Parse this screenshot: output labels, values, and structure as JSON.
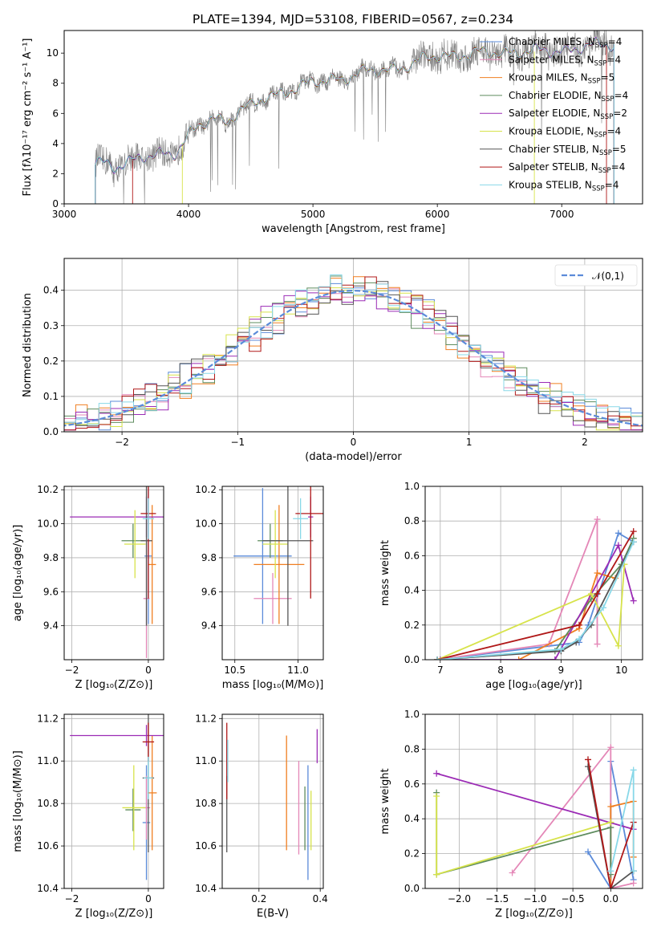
{
  "figure": {
    "title": "PLATE=1394, MJD=53108, FIBERID=0567, z=0.234"
  },
  "colors": {
    "Chabrier MILES": "#5b8bd9",
    "Salpeter MILES": "#e487b7",
    "Kroupa MILES": "#f07f21",
    "Chabrier ELODIE": "#5e8c5e",
    "Salpeter ELODIE": "#9b2bb5",
    "Kroupa ELODIE": "#d7e34b",
    "Chabrier STELIB": "#555555",
    "Salpeter STELIB": "#b01818",
    "Kroupa STELIB": "#88d8e8",
    "data": "#808080",
    "gaussian": "#5b8bd9"
  },
  "chart_data": [
    {
      "type": "line",
      "xlabel": "wavelength [Angstrom, rest frame]",
      "ylabel": "Flux [f_λ 10^-17 erg cm^-2 s^-1 A^-1]",
      "xlim": [
        3000,
        7650
      ],
      "ylim": [
        0,
        11.5
      ],
      "x_ticks": [
        3000,
        4000,
        5000,
        6000,
        7000
      ],
      "y_ticks": [
        0,
        2,
        4,
        6,
        8,
        10
      ],
      "grid": false,
      "legend_position": "right",
      "legend": [
        {
          "model": "Chabrier MILES",
          "nssp": "4"
        },
        {
          "model": "Salpeter MILES",
          "nssp": "4"
        },
        {
          "model": "Kroupa MILES",
          "nssp": "5"
        },
        {
          "model": "Chabrier ELODIE",
          "nssp": "4"
        },
        {
          "model": "Salpeter ELODIE",
          "nssp": "2"
        },
        {
          "model": "Kroupa ELODIE",
          "nssp": "4"
        },
        {
          "model": "Chabrier STELIB",
          "nssp": "5"
        },
        {
          "model": "Salpeter STELIB",
          "nssp": "4"
        },
        {
          "model": "Kroupa STELIB",
          "nssp": "4"
        }
      ],
      "model_continuum": {
        "x": [
          3250,
          3300,
          3400,
          3500,
          3600,
          3700,
          3800,
          3900,
          4000,
          4100,
          4200,
          4300,
          4400,
          4500,
          4600,
          4700,
          4800,
          4900,
          5000,
          5200,
          5400,
          5600,
          5800,
          6000,
          6200,
          6400,
          6600,
          6800,
          7000,
          7200,
          7400
        ],
        "y": [
          2.6,
          2.7,
          2.5,
          2.8,
          3.0,
          3.1,
          3.3,
          3.5,
          4.6,
          5.2,
          5.6,
          5.5,
          6.2,
          6.5,
          6.9,
          7.2,
          7.6,
          7.8,
          8.0,
          8.3,
          8.7,
          8.9,
          9.3,
          9.8,
          9.9,
          10.0,
          10.1,
          10.1,
          10.2,
          10.4,
          10.6
        ]
      }
    },
    {
      "type": "histogram",
      "xlabel": "(data-model)/error",
      "ylabel": "Normed distribution",
      "xlim": [
        -2.5,
        2.5
      ],
      "ylim": [
        0,
        0.49
      ],
      "x_ticks": [
        -2,
        -1,
        0,
        1,
        2
      ],
      "y_ticks": [
        0.0,
        0.1,
        0.2,
        0.3,
        0.4
      ],
      "grid": true,
      "legend_position": "top-right",
      "legend": [
        "𝒩(0,1)"
      ],
      "gaussian": {
        "mean": 0,
        "sigma": 1
      }
    },
    {
      "type": "scatter",
      "panel": "age-vs-Z",
      "xlabel": "Z [log10(Z/Z⊙)]",
      "ylabel": "age [log10(age/yr)]",
      "xlim": [
        -2.2,
        0.4
      ],
      "ylim": [
        9.2,
        10.22
      ],
      "x_ticks": [
        -2,
        0
      ],
      "y_ticks": [
        9.4,
        9.6,
        9.8,
        10.0,
        10.2
      ],
      "grid": true,
      "points": [
        {
          "series": "Chabrier MILES",
          "x": 0.0,
          "y": 9.81,
          "xerr": 0.1,
          "yerr": 0.4
        },
        {
          "series": "Salpeter MILES",
          "x": -0.05,
          "y": 9.56,
          "xerr": 0.08,
          "yerr": 0.35
        },
        {
          "series": "Kroupa MILES",
          "x": 0.1,
          "y": 9.76,
          "xerr": 0.1,
          "yerr": 0.35
        },
        {
          "series": "Chabrier ELODIE",
          "x": -0.4,
          "y": 9.9,
          "xerr": 0.3,
          "yerr": 0.1
        },
        {
          "series": "Salpeter ELODIE",
          "x": -0.05,
          "y": 10.04,
          "xerr": 2.0,
          "yerr": 0.12
        },
        {
          "series": "Kroupa ELODIE",
          "x": -0.35,
          "y": 9.88,
          "xerr": 0.28,
          "yerr": 0.2
        },
        {
          "series": "Chabrier STELIB",
          "x": -0.05,
          "y": 9.9,
          "xerr": 0.15,
          "yerr": 0.5
        },
        {
          "series": "Salpeter STELIB",
          "x": 0.0,
          "y": 10.06,
          "xerr": 0.2,
          "yerr": 0.5
        },
        {
          "series": "Kroupa STELIB",
          "x": 0.0,
          "y": 10.03,
          "xerr": 0.15,
          "yerr": 0.12
        }
      ]
    },
    {
      "type": "scatter",
      "panel": "age-vs-mass",
      "xlabel": "mass [log10(M/M⊙)]",
      "xlim": [
        10.4,
        11.2
      ],
      "ylim": [
        9.2,
        10.22
      ],
      "x_ticks": [
        10.5,
        11.0
      ],
      "y_ticks": [
        9.4,
        9.6,
        9.8,
        10.0,
        10.2
      ],
      "grid": true,
      "points": [
        {
          "series": "Chabrier MILES",
          "x": 10.72,
          "y": 9.81,
          "xerr": 0.23,
          "yerr": 0.4
        },
        {
          "series": "Salpeter MILES",
          "x": 10.8,
          "y": 9.56,
          "xerr": 0.15,
          "yerr": 0.15
        },
        {
          "series": "Kroupa MILES",
          "x": 10.85,
          "y": 9.76,
          "xerr": 0.2,
          "yerr": 0.35
        },
        {
          "series": "Chabrier ELODIE",
          "x": 10.78,
          "y": 9.9,
          "xerr": 0.1,
          "yerr": 0.1
        },
        {
          "series": "Salpeter ELODIE",
          "x": 11.1,
          "y": 10.04,
          "xerr": 0.02,
          "yerr": 0.12
        },
        {
          "series": "Kroupa ELODIE",
          "x": 10.82,
          "y": 9.88,
          "xerr": 0.1,
          "yerr": 0.2
        },
        {
          "series": "Chabrier STELIB",
          "x": 10.92,
          "y": 9.9,
          "xerr": 0.2,
          "yerr": 0.5
        },
        {
          "series": "Salpeter STELIB",
          "x": 11.1,
          "y": 10.06,
          "xerr": 0.12,
          "yerr": 0.5
        },
        {
          "series": "Kroupa STELIB",
          "x": 11.02,
          "y": 10.03,
          "xerr": 0.06,
          "yerr": 0.12
        }
      ]
    },
    {
      "type": "line",
      "panel": "mass-weight-vs-age",
      "xlabel": "age [log10(age/yr)]",
      "ylabel": "mass weight",
      "xlim": [
        6.75,
        10.35
      ],
      "ylim": [
        0,
        1.0
      ],
      "x_ticks": [
        7,
        8,
        9,
        10
      ],
      "y_ticks": [
        0.0,
        0.2,
        0.4,
        0.6,
        0.8,
        1.0
      ],
      "grid": true,
      "series": [
        {
          "name": "Chabrier MILES",
          "x": [
            6.95,
            9.3,
            9.45,
            9.95,
            10.2
          ],
          "y": [
            0.0,
            0.1,
            0.2,
            0.73,
            0.68
          ]
        },
        {
          "name": "Salpeter MILES",
          "x": [
            6.95,
            8.8,
            9.6,
            9.6
          ],
          "y": [
            0.0,
            0.09,
            0.81,
            0.09
          ]
        },
        {
          "name": "Kroupa MILES",
          "x": [
            8.3,
            9.3,
            9.6,
            9.9,
            10.2
          ],
          "y": [
            0.0,
            0.18,
            0.5,
            0.47,
            0.7
          ]
        },
        {
          "name": "Chabrier ELODIE",
          "x": [
            6.95,
            8.9,
            9.5,
            10.0,
            10.2
          ],
          "y": [
            0.0,
            0.05,
            0.35,
            0.55,
            0.7
          ]
        },
        {
          "name": "Salpeter ELODIE",
          "x": [
            7.0,
            8.9,
            9.95,
            10.2
          ],
          "y": [
            0.0,
            0.0,
            0.66,
            0.34
          ]
        },
        {
          "name": "Kroupa ELODIE",
          "x": [
            6.95,
            9.5,
            9.95,
            10.05
          ],
          "y": [
            0.0,
            0.38,
            0.08,
            0.55
          ]
        },
        {
          "name": "Chabrier STELIB",
          "x": [
            6.95,
            9.0,
            9.25,
            9.5,
            10.2
          ],
          "y": [
            0.0,
            0.05,
            0.1,
            0.2,
            0.68
          ]
        },
        {
          "name": "Salpeter STELIB",
          "x": [
            6.95,
            9.3,
            9.6,
            10.2
          ],
          "y": [
            0.0,
            0.2,
            0.38,
            0.74
          ]
        },
        {
          "name": "Kroupa STELIB",
          "x": [
            6.95,
            9.0,
            9.3,
            9.7,
            10.2
          ],
          "y": [
            0.0,
            0.06,
            0.12,
            0.3,
            0.68
          ]
        }
      ]
    },
    {
      "type": "scatter",
      "panel": "mass-vs-Z",
      "xlabel": "Z [log10(Z/Z⊙)]",
      "ylabel": "mass [log10(M/M⊙)]",
      "xlim": [
        -2.2,
        0.4
      ],
      "ylim": [
        10.4,
        11.22
      ],
      "x_ticks": [
        -2,
        0
      ],
      "y_ticks": [
        10.4,
        10.6,
        10.8,
        11.0,
        11.2
      ],
      "grid": true,
      "points": [
        {
          "series": "Chabrier MILES",
          "x": -0.05,
          "y": 10.71,
          "xerr": 0.1,
          "yerr": 0.27
        },
        {
          "series": "Salpeter MILES",
          "x": -0.05,
          "y": 10.78,
          "xerr": 0.1,
          "yerr": 0.15
        },
        {
          "series": "Kroupa MILES",
          "x": 0.1,
          "y": 10.85,
          "xerr": 0.12,
          "yerr": 0.27
        },
        {
          "series": "Chabrier ELODIE",
          "x": -0.4,
          "y": 10.77,
          "xerr": 0.2,
          "yerr": 0.1
        },
        {
          "series": "Salpeter ELODIE",
          "x": -0.05,
          "y": 11.12,
          "xerr": 2.0,
          "yerr": 0.05
        },
        {
          "series": "Kroupa ELODIE",
          "x": -0.38,
          "y": 10.78,
          "xerr": 0.3,
          "yerr": 0.2
        },
        {
          "series": "Chabrier STELIB",
          "x": 0.0,
          "y": 10.92,
          "xerr": 0.15,
          "yerr": 0.35
        },
        {
          "series": "Salpeter STELIB",
          "x": 0.0,
          "y": 11.09,
          "xerr": 0.15,
          "yerr": 0.09
        },
        {
          "series": "Kroupa STELIB",
          "x": 0.0,
          "y": 10.92,
          "xerr": 0.12,
          "yerr": 0.1
        }
      ]
    },
    {
      "type": "scatter",
      "panel": "mass-vs-EBV",
      "xlabel": "E(B-V)",
      "xlim": [
        0.08,
        0.41
      ],
      "ylim": [
        10.4,
        11.22
      ],
      "x_ticks": [
        0.2,
        0.4
      ],
      "y_ticks": [
        10.4,
        10.6,
        10.8,
        11.0,
        11.2
      ],
      "grid": true,
      "points": [
        {
          "series": "Chabrier MILES",
          "x": 0.36,
          "y": 10.71,
          "yerr": 0.27
        },
        {
          "series": "Salpeter MILES",
          "x": 0.33,
          "y": 10.78,
          "yerr": 0.22
        },
        {
          "series": "Kroupa MILES",
          "x": 0.29,
          "y": 10.85,
          "yerr": 0.27
        },
        {
          "series": "Chabrier ELODIE",
          "x": 0.35,
          "y": 10.73,
          "yerr": 0.15
        },
        {
          "series": "Salpeter ELODIE",
          "x": 0.39,
          "y": 11.07,
          "yerr": 0.08
        },
        {
          "series": "Kroupa ELODIE",
          "x": 0.37,
          "y": 10.72,
          "yerr": 0.14
        },
        {
          "series": "Chabrier STELIB",
          "x": 0.095,
          "y": 10.75,
          "yerr": 0.18
        },
        {
          "series": "Salpeter STELIB",
          "x": 0.095,
          "y": 11.0,
          "yerr": 0.18
        },
        {
          "series": "Kroupa STELIB",
          "x": 0.098,
          "y": 11.0,
          "yerr": 0.1
        }
      ]
    },
    {
      "type": "line",
      "panel": "mass-weight-vs-Z",
      "xlabel": "Z [log10(Z/Z⊙)]",
      "ylabel": "mass weight",
      "xlim": [
        -2.45,
        0.42
      ],
      "ylim": [
        0,
        1.0
      ],
      "x_ticks": [
        -2.0,
        -1.5,
        -1.0,
        -0.5,
        0.0
      ],
      "y_ticks": [
        0.0,
        0.2,
        0.4,
        0.6,
        0.8,
        1.0
      ],
      "grid": true,
      "series": [
        {
          "name": "Chabrier MILES",
          "x": [
            -0.3,
            0.0,
            0.0,
            0.3
          ],
          "y": [
            0.21,
            0.0,
            0.73,
            0.05
          ]
        },
        {
          "name": "Salpeter MILES",
          "x": [
            -1.3,
            0.0,
            0.0,
            0.3
          ],
          "y": [
            0.09,
            0.81,
            0.0,
            0.03
          ]
        },
        {
          "name": "Kroupa MILES",
          "x": [
            0.0,
            0.0,
            0.3,
            0.3
          ],
          "y": [
            0.0,
            0.47,
            0.5,
            0.18
          ]
        },
        {
          "name": "Chabrier ELODIE",
          "x": [
            -2.3,
            -2.3,
            0.0,
            0.0
          ],
          "y": [
            0.55,
            0.08,
            0.35,
            0.08
          ]
        },
        {
          "name": "Salpeter ELODIE",
          "x": [
            -2.3,
            0.3
          ],
          "y": [
            0.66,
            0.34
          ]
        },
        {
          "name": "Kroupa ELODIE",
          "x": [
            -2.3,
            -2.3,
            0.0
          ],
          "y": [
            0.53,
            0.08,
            0.38
          ]
        },
        {
          "name": "Chabrier STELIB",
          "x": [
            -0.3,
            0.0,
            0.3,
            0.3
          ],
          "y": [
            0.7,
            0.0,
            0.1,
            0.1
          ]
        },
        {
          "name": "Salpeter STELIB",
          "x": [
            -0.3,
            0.0,
            0.3
          ],
          "y": [
            0.74,
            0.0,
            0.38
          ]
        },
        {
          "name": "Kroupa STELIB",
          "x": [
            0.0,
            0.3,
            0.3
          ],
          "y": [
            0.1,
            0.68,
            0.1
          ]
        }
      ]
    }
  ]
}
